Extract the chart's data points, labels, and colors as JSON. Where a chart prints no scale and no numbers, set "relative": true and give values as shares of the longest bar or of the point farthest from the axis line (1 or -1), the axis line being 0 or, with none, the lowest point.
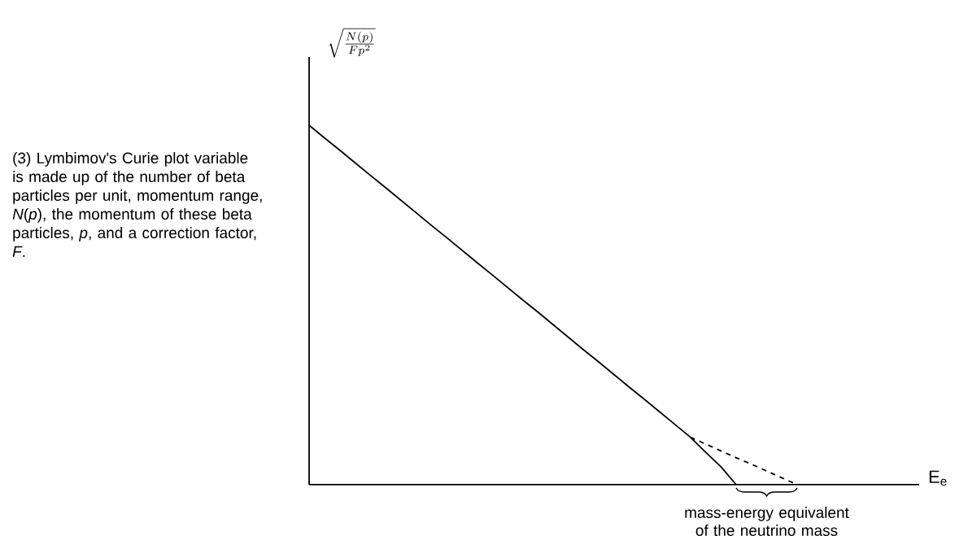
{
  "chart_data": {
    "type": "line",
    "relative": true,
    "xlabel": "E$_{e}$",
    "ylabel": "\\sqrt{\\frac{N(p)}{Fp^2}}",
    "categories": [
      null,
      null,
      null,
      null,
      null,
      null,
      null,
      null,
      null,
      null,
      null,
      null,
      null,
      null,
      null,
      null,
      null,
      null,
      null,
      null,
      null,
      null,
      null,
      null,
      null,
      null,
      null,
      null,
      null,
      null,
      null,
      null,
      null,
      null,
      null,
      null,
      null,
      null,
      null,
      null,
      null
    ],
    "series": [
      {
        "color": "#000000",
        "line_style": "solid",
        "values": [
          1,
          0.965,
          0.931,
          0.896,
          0.861,
          0.827,
          0.792,
          0.757,
          0.722,
          0.688,
          0.653,
          0.618,
          0.584,
          0.549,
          0.514,
          0.48,
          0.445,
          0.41,
          0.375,
          0.341,
          0.306,
          0.271,
          0.237,
          0.202,
          0.167,
          0.132,
          0.09,
          0.05,
          0,
          null,
          null,
          null,
          null,
          null,
          null,
          null,
          null,
          null,
          null,
          null,
          null
        ]
      },
      {
        "color": "#000000",
        "line_style": "dashed",
        "values": [
          null,
          null,
          null,
          null,
          null,
          null,
          null,
          null,
          null,
          null,
          null,
          null,
          null,
          null,
          null,
          null,
          null,
          null,
          null,
          null,
          null,
          null,
          null,
          null,
          null,
          0.132,
          0.113,
          0.094,
          0.075,
          0.057,
          0.038,
          0.019,
          0,
          null,
          null,
          null,
          null,
          null,
          null,
          null,
          null
        ]
      }
    ],
    "annotations": [
      "mass-energy equivalent of the neutrino mass",
      "(3) Lymbimov's Curie plot variable is made up of the number of beta particles per unit, momentum range, *N*(*p*), the momentum of these beta particles, *p*, and a correction factor, *F*."
    ]
  }
}
